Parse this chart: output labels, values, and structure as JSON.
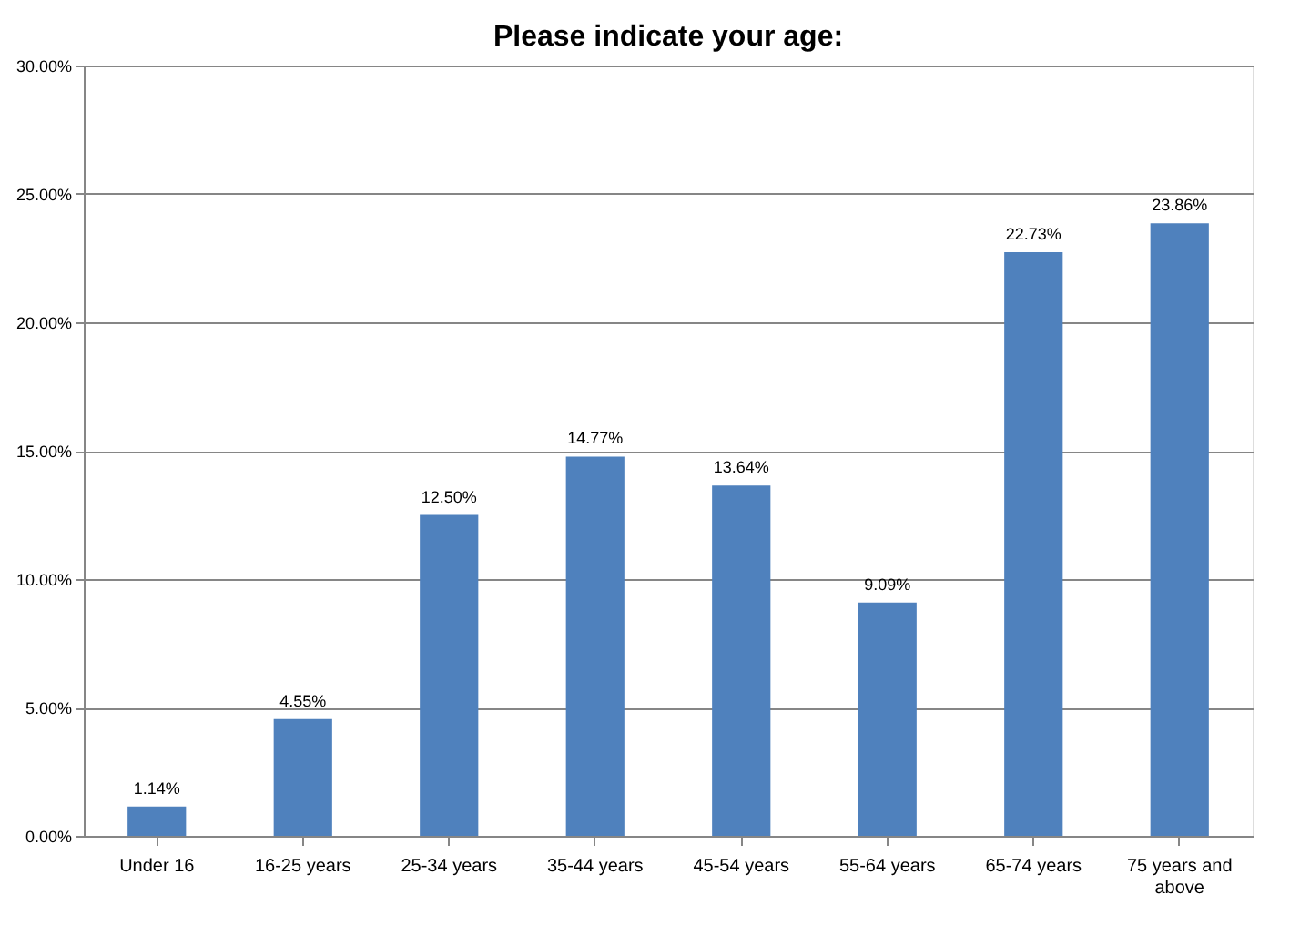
{
  "chart_data": {
    "type": "bar",
    "title": "Please indicate your age:",
    "categories": [
      "Under 16",
      "16-25 years",
      "25-34 years",
      "35-44 years",
      "45-54 years",
      "55-64 years",
      "65-74 years",
      "75 years and above"
    ],
    "values": [
      1.14,
      4.55,
      12.5,
      14.77,
      13.64,
      9.09,
      22.73,
      23.86
    ],
    "value_labels": [
      "1.14%",
      "4.55%",
      "12.50%",
      "14.77%",
      "13.64%",
      "9.09%",
      "22.73%",
      "23.86%"
    ],
    "color": "#4f81bd",
    "ylim": [
      0,
      30
    ],
    "yticks": [
      {
        "value": 0,
        "label": "0.00%"
      },
      {
        "value": 5,
        "label": "5.00%"
      },
      {
        "value": 10,
        "label": "10.00%"
      },
      {
        "value": 15,
        "label": "15.00%"
      },
      {
        "value": 20,
        "label": "20.00%"
      },
      {
        "value": 25,
        "label": "25.00%"
      },
      {
        "value": 30,
        "label": "30.00%"
      }
    ],
    "grid": "y"
  }
}
